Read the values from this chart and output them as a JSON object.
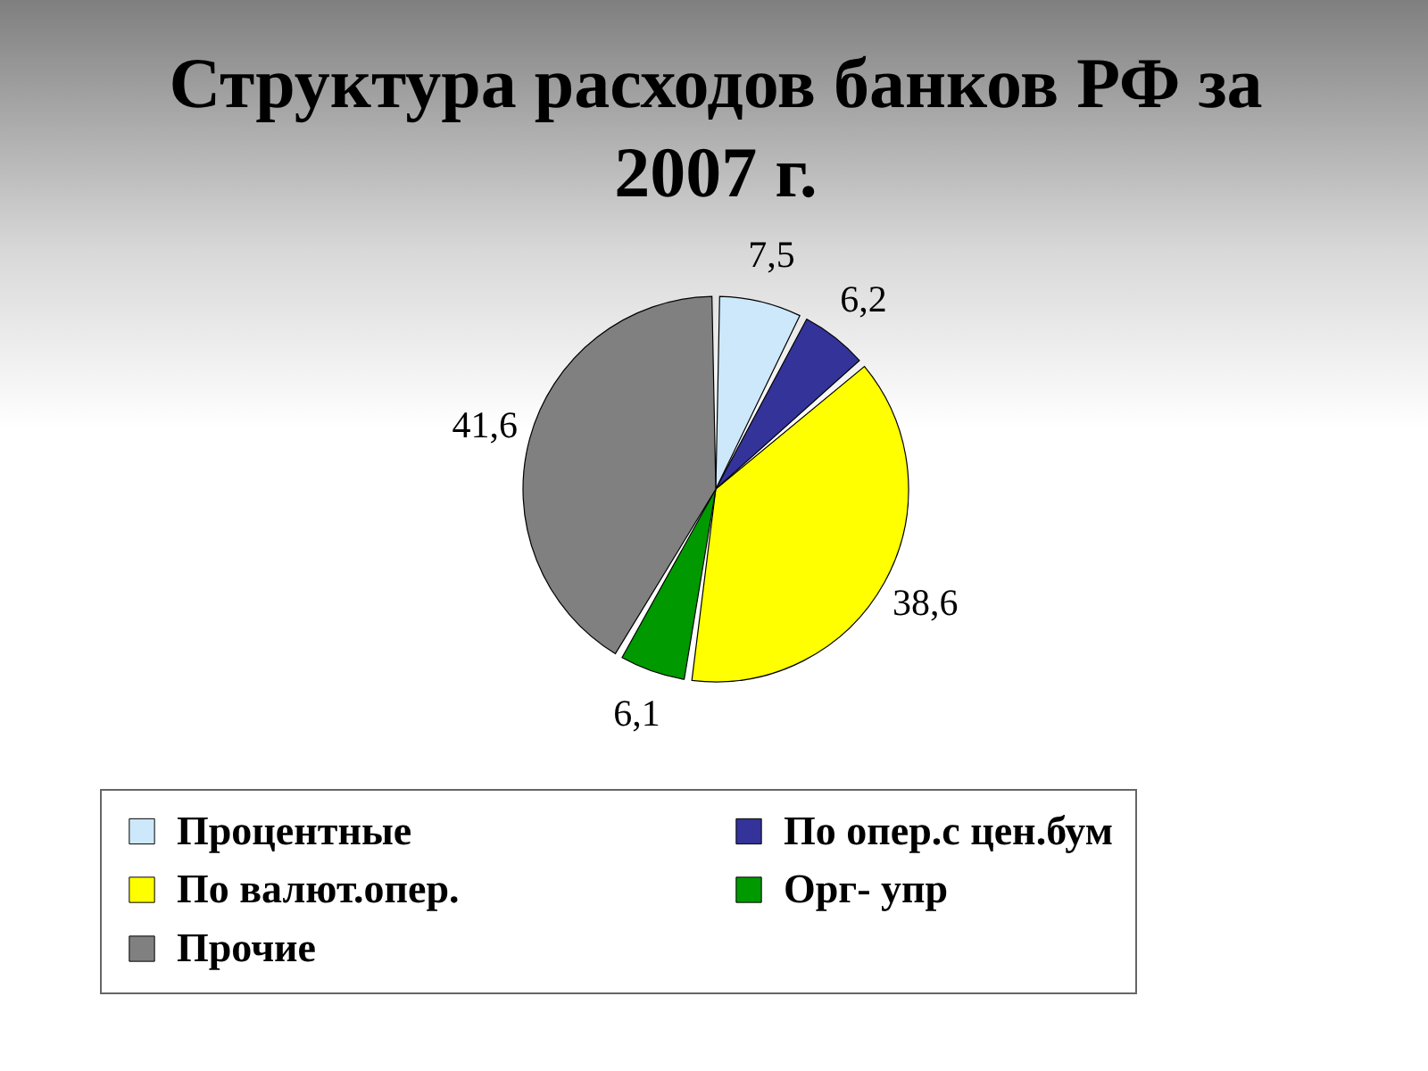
{
  "chart_data": {
    "type": "pie",
    "title": "Структура расходов банков РФ за 2007 г.",
    "categories": [
      "Процентные",
      "По опер.с цен.бум",
      "По валют.опер.",
      "Орг- упр",
      "Прочие"
    ],
    "values": [
      7.5,
      6.2,
      38.6,
      6.1,
      41.6
    ],
    "colors": [
      "#cce8fa",
      "#333399",
      "#ffff00",
      "#009900",
      "#808080"
    ],
    "value_labels": [
      "7,5",
      "6,2",
      "38,6",
      "6,1",
      "41,6"
    ],
    "legend": "bottom"
  }
}
